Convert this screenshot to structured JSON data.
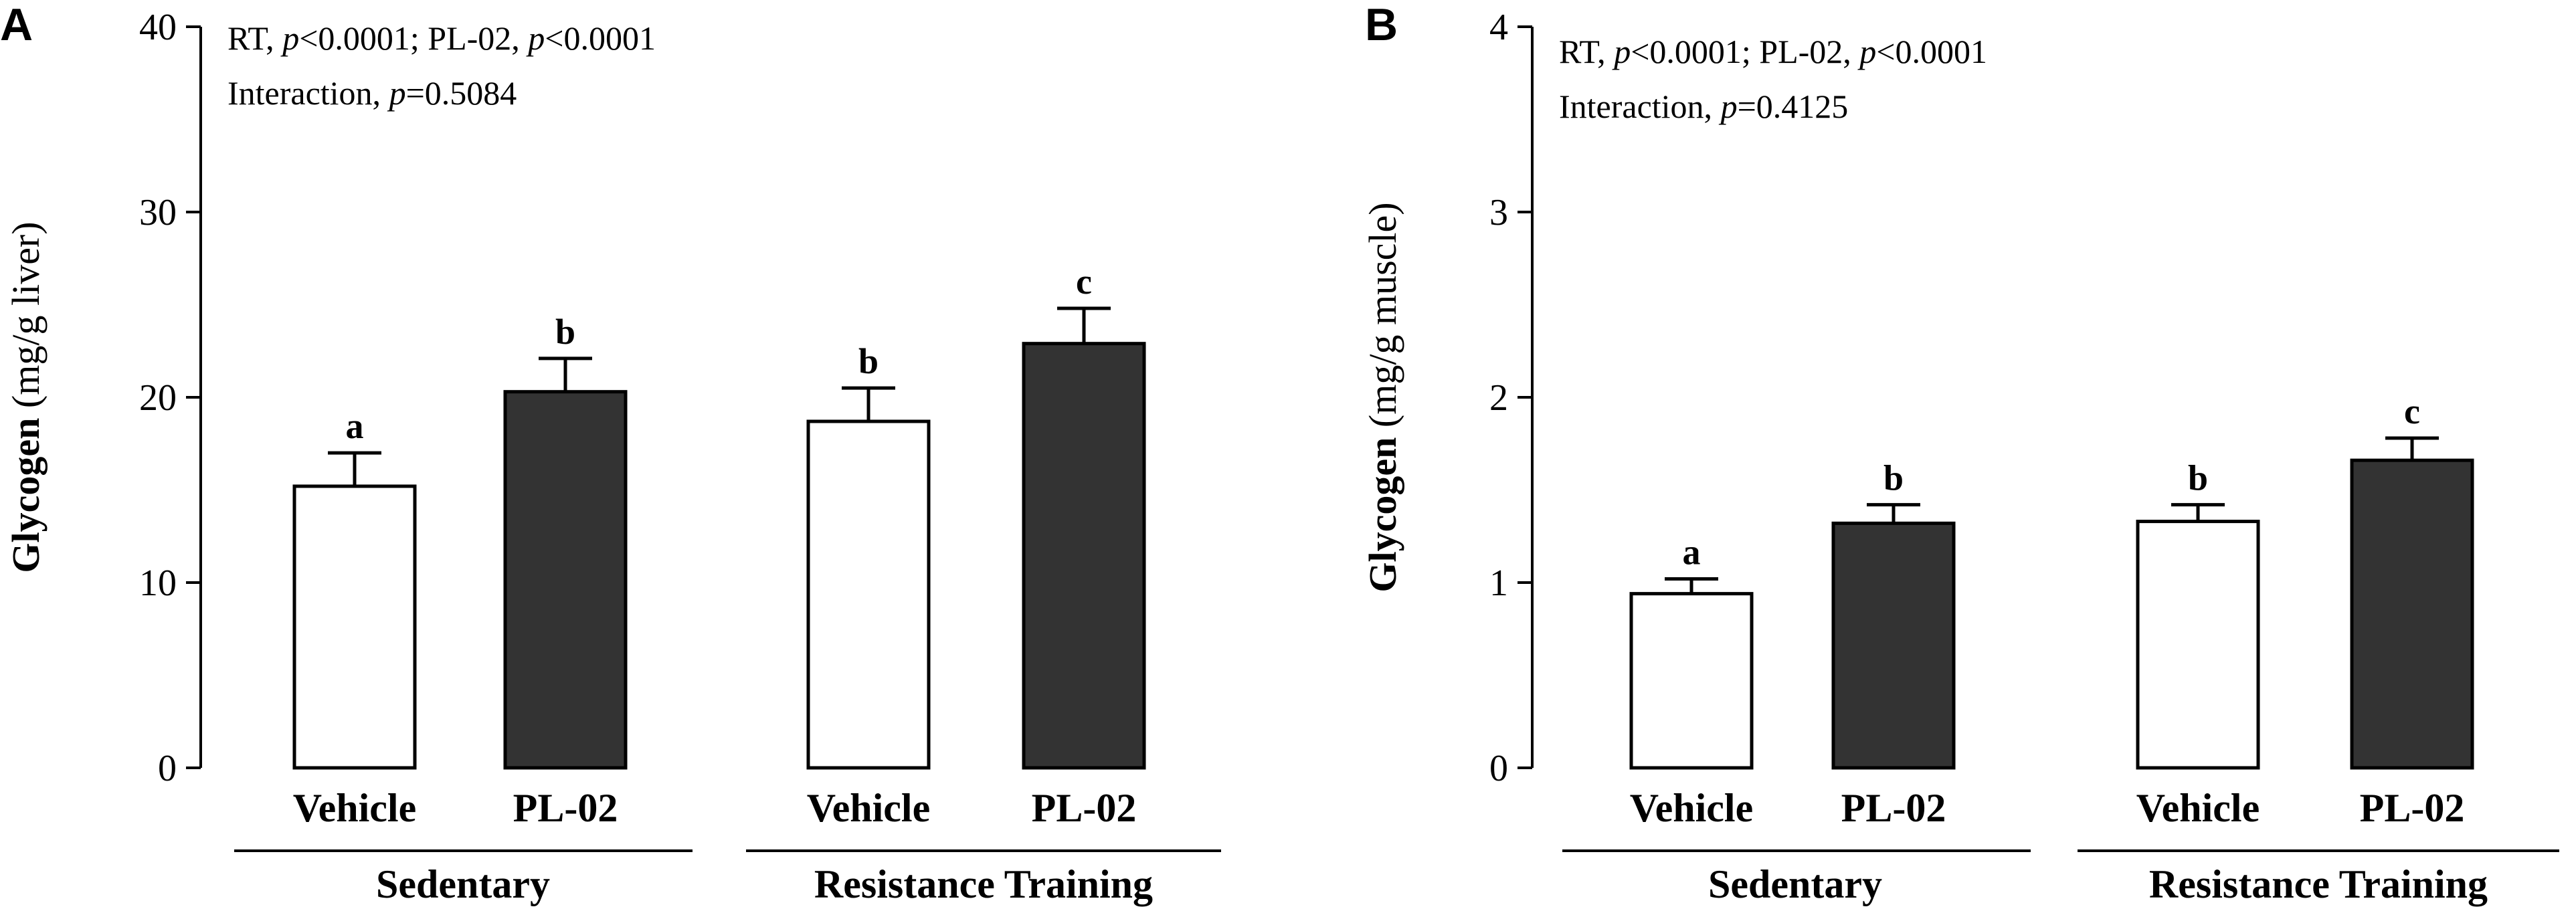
{
  "chart_data": [
    {
      "type": "bar",
      "panel_label": "A",
      "ylabel_bold": "Glycogen",
      "ylabel_unit": "(mg/g liver)",
      "ylim": [
        0,
        40
      ],
      "yticks": [
        0,
        10,
        20,
        30,
        40
      ],
      "stats": {
        "rt_label": "RT, ",
        "rt_p": "p",
        "rt_val": "<0.0001",
        "sep": "; PL-02, ",
        "pl_p": "p",
        "pl_val": "<0.0001",
        "interaction_label": "Interaction, ",
        "int_p": "p",
        "int_val": "=0.5084"
      },
      "groups": [
        "Sedentary",
        "Resistance Training"
      ],
      "conditions": [
        "Vehicle",
        "PL-02"
      ],
      "series": [
        {
          "name": "Vehicle",
          "color": "#ffffff",
          "values": [
            15.2,
            18.7
          ],
          "errors": [
            1.8,
            1.8
          ],
          "letters": [
            "a",
            "b"
          ]
        },
        {
          "name": "PL-02",
          "color": "#333333",
          "values": [
            20.3,
            22.9
          ],
          "errors": [
            1.8,
            1.9
          ],
          "letters": [
            "b",
            "c"
          ]
        }
      ]
    },
    {
      "type": "bar",
      "panel_label": "B",
      "ylabel_bold": "Glycogen",
      "ylabel_unit": "(mg/g muscle)",
      "ylim": [
        0,
        4
      ],
      "yticks": [
        0,
        1,
        2,
        3,
        4
      ],
      "stats": {
        "rt_label": "RT, ",
        "rt_p": "p",
        "rt_val": "<0.0001",
        "sep": "; PL-02, ",
        "pl_p": "p",
        "pl_val": "<0.0001",
        "interaction_label": "Interaction, ",
        "int_p": "p",
        "int_val": "=0.4125"
      },
      "groups": [
        "Sedentary",
        "Resistance Training"
      ],
      "conditions": [
        "Vehicle",
        "PL-02"
      ],
      "series": [
        {
          "name": "Vehicle",
          "color": "#ffffff",
          "values": [
            0.94,
            1.33
          ],
          "errors": [
            0.08,
            0.09
          ],
          "letters": [
            "a",
            "b"
          ]
        },
        {
          "name": "PL-02",
          "color": "#333333",
          "values": [
            1.32,
            1.66
          ],
          "errors": [
            0.1,
            0.12
          ],
          "letters": [
            "b",
            "c"
          ]
        }
      ]
    }
  ]
}
